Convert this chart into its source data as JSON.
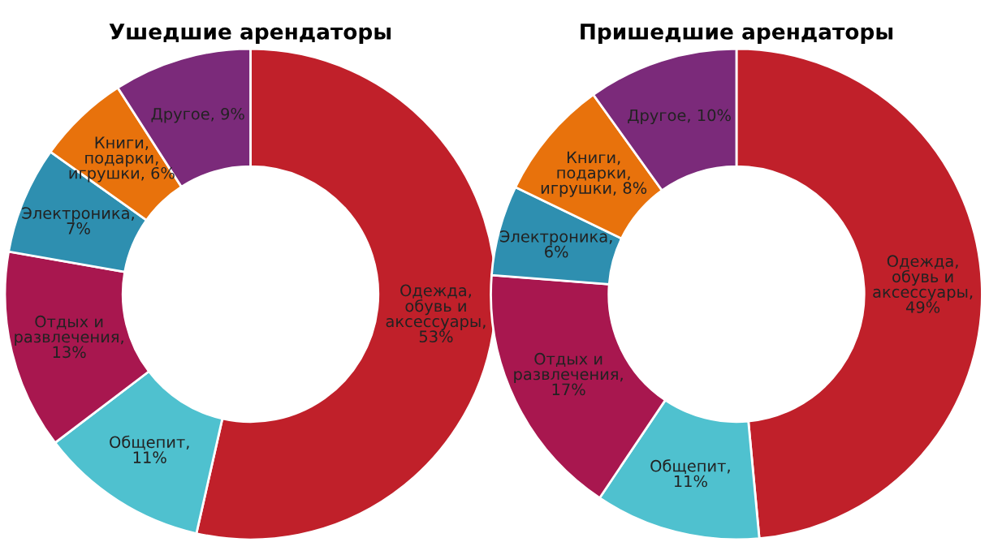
{
  "chart_data": [
    {
      "type": "donut",
      "title": "Ушедшие арендаторы",
      "categories": [
        "Одежда, обувь и аксессуары, 53%",
        "Общепит, 11%",
        "Отдых и развлечения, 13%",
        "Электроника, 7%",
        "Книги, подарки, игрушки, 6%",
        "Другое, 9%"
      ],
      "values": [
        53,
        11,
        13,
        7,
        6,
        9
      ],
      "colors": [
        "#c0202a",
        "#4fc1cf",
        "#a8174f",
        "#2e8fb0",
        "#e8720c",
        "#7b2a7a"
      ]
    },
    {
      "type": "donut",
      "title": "Пришедшие арендаторы",
      "categories": [
        "Одежда, обувь и аксессуары, 49%",
        "Общепит, 11%",
        "Отдых и развлечения, 17%",
        "Электроника, 6%",
        "Книги, подарки, игрушки, 8%",
        "Другое, 10%"
      ],
      "values": [
        49,
        11,
        17,
        6,
        8,
        10
      ],
      "colors": [
        "#c0202a",
        "#4fc1cf",
        "#a8174f",
        "#2e8fb0",
        "#e8720c",
        "#7b2a7a"
      ]
    }
  ]
}
